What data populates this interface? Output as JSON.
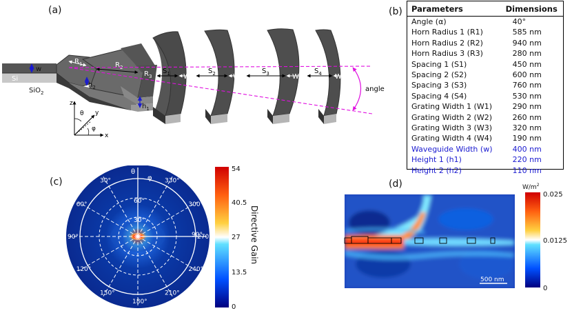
{
  "panels": {
    "a": "(a)",
    "b": "(b)",
    "c": "(c)",
    "d": "(d)"
  },
  "schematic": {
    "w": "w",
    "si": "Si",
    "sio2": "SiO2",
    "r1": "R1",
    "r2": "R2",
    "r3": "R3",
    "s1": "S1",
    "s2": "S2",
    "s3": "S3",
    "s4": "S4",
    "w1": "W1",
    "w2": "W2",
    "w3": "W3",
    "w4": "W4",
    "h1": "h1",
    "h2": "h2",
    "angle": "angle",
    "axes": {
      "z": "z",
      "y": "y",
      "x": "x",
      "theta": "θ",
      "phi": "φ"
    }
  },
  "table": {
    "headers": [
      "Parameters",
      "Dimensions"
    ],
    "rows": [
      {
        "param": "Angle (α)",
        "value": "40°",
        "highlight": false
      },
      {
        "param": "Horn Radius 1 (R1)",
        "value": "585 nm",
        "highlight": false
      },
      {
        "param": "Horn Radius 2 (R2)",
        "value": "940 nm",
        "highlight": false
      },
      {
        "param": "Horn Radius 3 (R3)",
        "value": "280 nm",
        "highlight": false
      },
      {
        "param": "Spacing 1 (S1)",
        "value": "450 nm",
        "highlight": false
      },
      {
        "param": "Spacing 2 (S2)",
        "value": "600 nm",
        "highlight": false
      },
      {
        "param": "Spacing 3 (S3)",
        "value": "760 nm",
        "highlight": false
      },
      {
        "param": "Spacing 4 (S4)",
        "value": "530 nm",
        "highlight": false
      },
      {
        "param": "Grating Width 1 (W1)",
        "value": "290 nm",
        "highlight": false
      },
      {
        "param": "Grating Width 2 (W2)",
        "value": "260 nm",
        "highlight": false
      },
      {
        "param": "Grating Width 3 (W3)",
        "value": "320 nm",
        "highlight": false
      },
      {
        "param": "Grating Width 4 (W4)",
        "value": "190 nm",
        "highlight": false
      },
      {
        "param": "Waveguide Width (w)",
        "value": "400 nm",
        "highlight": true
      },
      {
        "param": "Height 1 (h1)",
        "value": "220 nm",
        "highlight": true
      },
      {
        "param": "Height 2 (h2)",
        "value": "110 nm",
        "highlight": true
      }
    ]
  },
  "polar": {
    "theta_label": "θ",
    "phi_label": "φ",
    "phi_ticks": [
      "330°",
      "300°",
      "270°",
      "240°",
      "210°",
      "180°",
      "150°",
      "120°",
      "90°",
      "60°",
      "30°"
    ],
    "theta_rings": [
      "30°",
      "60°",
      "90°"
    ],
    "colorbar": {
      "label": "Directive Gain",
      "ticks": [
        "54",
        "40.5",
        "27",
        "13.5",
        "0"
      ]
    }
  },
  "field": {
    "scalebar": "500 nm",
    "colorbar": {
      "unit": "W/m",
      "unit_sup": "2",
      "ticks": [
        "0.025",
        "0.0125",
        "0"
      ]
    }
  }
}
